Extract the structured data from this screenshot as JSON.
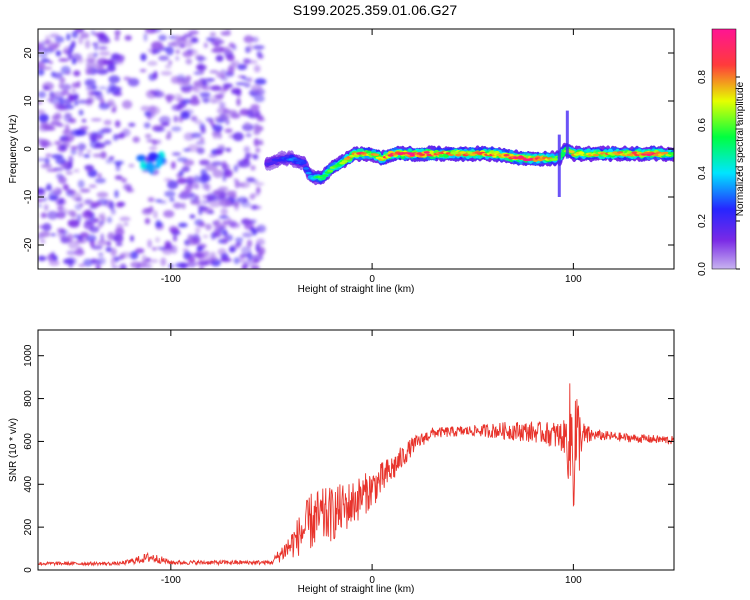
{
  "title": "S199.2025.359.01.06.G27",
  "colors": {
    "axis": "#000000",
    "snr_line": "#e8332b",
    "scatter_purple": "#8a2be2",
    "colorbar": [
      "#c8b4f0",
      "#7a2ae6",
      "#2626ff",
      "#00e5ff",
      "#00ff40",
      "#e6ff00",
      "#ff3b3b",
      "#ff1493"
    ]
  },
  "chart_data": [
    {
      "type": "heatmap",
      "title": "",
      "xlabel": "Height of straight line (km)",
      "ylabel": "Frequency (Hz)",
      "xlim": [
        -166,
        150
      ],
      "ylim": [
        -25,
        25
      ],
      "x_ticks": [
        -100,
        0,
        100
      ],
      "x_tick_labels": [
        "-100",
        "0",
        "100"
      ],
      "y_ticks": [
        -20,
        -10,
        0,
        10,
        20
      ],
      "y_tick_labels": [
        "-20",
        "-10",
        "0",
        "10",
        "20"
      ],
      "colorbar": {
        "label": "Normalized spectral amplitude",
        "range": [
          0,
          1
        ],
        "ticks": [
          0.0,
          0.2,
          0.4,
          0.6,
          0.8
        ],
        "tick_labels": [
          "0.0",
          "0.2",
          "0.4",
          "0.6",
          "0.8"
        ]
      },
      "noise_region": {
        "x_range": [
          -166,
          -55
        ],
        "gap_x_range": [
          -125,
          -112
        ],
        "typical_amplitude": 0.15,
        "cluster": {
          "x": -110,
          "y": -3,
          "amplitude": 0.3
        }
      },
      "ridge": {
        "points": [
          {
            "x": -52,
            "y": -3,
            "amp": 0.2
          },
          {
            "x": -45,
            "y": -2,
            "amp": 0.25
          },
          {
            "x": -40,
            "y": -2,
            "amp": 0.3
          },
          {
            "x": -34,
            "y": -3,
            "amp": 0.3
          },
          {
            "x": -30,
            "y": -6,
            "amp": 0.4
          },
          {
            "x": -25,
            "y": -6,
            "amp": 0.55
          },
          {
            "x": -20,
            "y": -4,
            "amp": 0.6
          },
          {
            "x": -12,
            "y": -2,
            "amp": 0.7
          },
          {
            "x": -8,
            "y": -1,
            "amp": 0.85
          },
          {
            "x": 0,
            "y": -1,
            "amp": 0.7
          },
          {
            "x": 5,
            "y": -2,
            "amp": 0.75
          },
          {
            "x": 10,
            "y": -1,
            "amp": 0.85
          },
          {
            "x": 20,
            "y": -1,
            "amp": 0.9
          },
          {
            "x": 40,
            "y": -1,
            "amp": 0.75
          },
          {
            "x": 60,
            "y": -1,
            "amp": 0.8
          },
          {
            "x": 75,
            "y": -2,
            "amp": 0.9
          },
          {
            "x": 85,
            "y": -2,
            "amp": 0.85
          },
          {
            "x": 93,
            "y": -2,
            "amp": 0.6
          },
          {
            "x": 96,
            "y": 0,
            "amp": 0.6
          },
          {
            "x": 100,
            "y": -1,
            "amp": 0.75
          },
          {
            "x": 110,
            "y": -1,
            "amp": 0.7
          },
          {
            "x": 125,
            "y": -1,
            "amp": 0.75
          },
          {
            "x": 140,
            "y": -1,
            "amp": 0.9
          },
          {
            "x": 150,
            "y": -1,
            "amp": 0.6
          }
        ],
        "spikes": [
          {
            "x": 93,
            "y_range": [
              -10,
              3
            ]
          },
          {
            "x": 97,
            "y_range": [
              -2,
              8
            ]
          }
        ]
      }
    },
    {
      "type": "line",
      "title": "",
      "xlabel": "Height of straight line (km)",
      "ylabel": "SNR (10 * v/v)",
      "xlim": [
        -166,
        150
      ],
      "ylim": [
        0,
        1120
      ],
      "x_ticks": [
        -100,
        0,
        100
      ],
      "x_tick_labels": [
        "-100",
        "0",
        "100"
      ],
      "y_ticks": [
        0,
        200,
        400,
        600,
        800,
        1000
      ],
      "y_tick_labels": [
        "0",
        "200",
        "400",
        "600",
        "800",
        "1000"
      ],
      "series": [
        {
          "name": "SNR",
          "envelope": [
            {
              "x": -166,
              "mean": 30,
              "jitter": 8
            },
            {
              "x": -125,
              "mean": 30,
              "jitter": 8
            },
            {
              "x": -110,
              "mean": 60,
              "jitter": 25
            },
            {
              "x": -100,
              "mean": 35,
              "jitter": 10
            },
            {
              "x": -50,
              "mean": 35,
              "jitter": 10
            },
            {
              "x": -40,
              "mean": 120,
              "jitter": 70
            },
            {
              "x": -30,
              "mean": 230,
              "jitter": 140
            },
            {
              "x": -20,
              "mean": 260,
              "jitter": 130
            },
            {
              "x": -10,
              "mean": 310,
              "jitter": 110
            },
            {
              "x": 0,
              "mean": 380,
              "jitter": 90
            },
            {
              "x": 10,
              "mean": 470,
              "jitter": 70
            },
            {
              "x": 20,
              "mean": 580,
              "jitter": 40
            },
            {
              "x": 30,
              "mean": 640,
              "jitter": 25
            },
            {
              "x": 50,
              "mean": 650,
              "jitter": 25
            },
            {
              "x": 70,
              "mean": 650,
              "jitter": 45
            },
            {
              "x": 85,
              "mean": 640,
              "jitter": 50
            },
            {
              "x": 96,
              "mean": 620,
              "jitter": 80
            },
            {
              "x": 100,
              "mean": 600,
              "jitter": 420
            },
            {
              "x": 104,
              "mean": 620,
              "jitter": 80
            },
            {
              "x": 110,
              "mean": 630,
              "jitter": 25
            },
            {
              "x": 130,
              "mean": 615,
              "jitter": 20
            },
            {
              "x": 150,
              "mean": 605,
              "jitter": 20
            }
          ]
        }
      ]
    }
  ]
}
